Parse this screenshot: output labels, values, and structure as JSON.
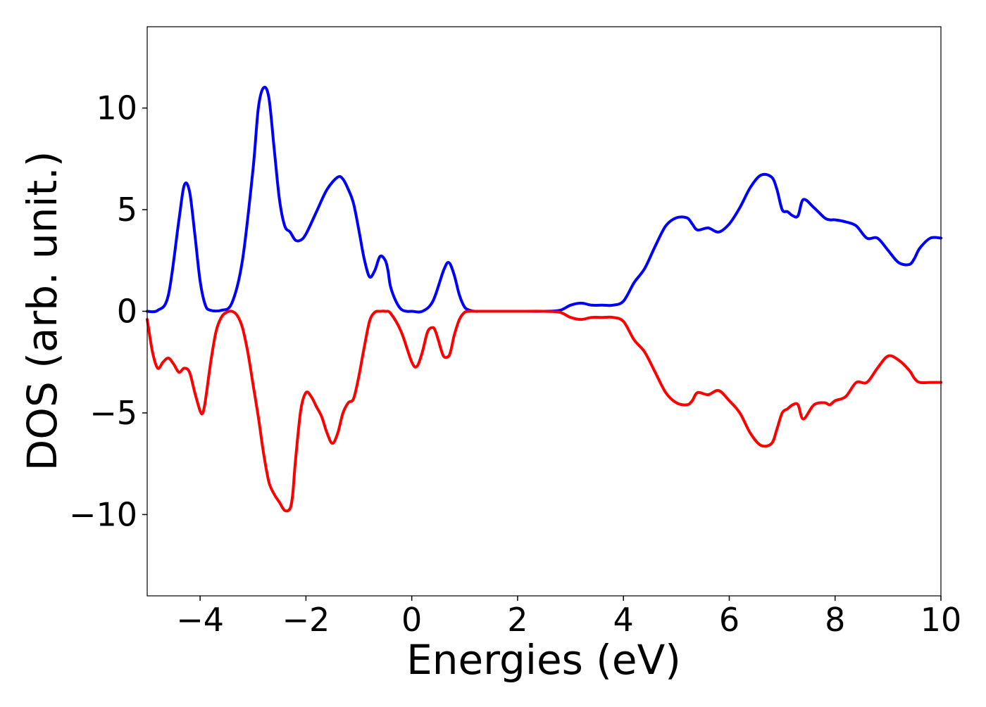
{
  "chart_data": {
    "type": "line",
    "title": "",
    "xlabel": "Energies (eV)",
    "ylabel": "DOS (arb. unit.)",
    "xlim": [
      -5,
      10
    ],
    "ylim": [
      -14,
      14
    ],
    "xticks": [
      -4,
      -2,
      0,
      2,
      4,
      6,
      8,
      10
    ],
    "xtick_labels": [
      "−4",
      "−2",
      "0",
      "2",
      "4",
      "6",
      "8",
      "10"
    ],
    "yticks": [
      -10,
      -5,
      0,
      5,
      10
    ],
    "ytick_labels": [
      "−10",
      "−5",
      "0",
      "5",
      "10"
    ],
    "grid": false,
    "series": [
      {
        "color": "#0000ff",
        "x": [
          -5.0,
          -4.8,
          -4.6,
          -4.4,
          -4.3,
          -4.2,
          -4.1,
          -4.0,
          -3.9,
          -3.8,
          -3.6,
          -3.4,
          -3.2,
          -3.0,
          -2.9,
          -2.8,
          -2.7,
          -2.6,
          -2.5,
          -2.4,
          -2.3,
          -2.2,
          -2.1,
          -2.0,
          -1.8,
          -1.6,
          -1.4,
          -1.3,
          -1.2,
          -1.1,
          -1.0,
          -0.9,
          -0.8,
          -0.7,
          -0.6,
          -0.5,
          -0.45,
          -0.4,
          -0.3,
          -0.2,
          -0.1,
          0.0,
          0.2,
          0.4,
          0.6,
          0.7,
          0.8,
          0.9,
          1.0,
          1.1,
          1.2,
          1.3,
          1.4,
          1.6,
          2.0,
          2.5,
          2.8,
          3.0,
          3.2,
          3.4,
          3.6,
          3.8,
          4.0,
          4.2,
          4.4,
          4.6,
          4.8,
          5.0,
          5.2,
          5.3,
          5.4,
          5.6,
          5.8,
          6.0,
          6.2,
          6.4,
          6.6,
          6.8,
          6.9,
          7.0,
          7.1,
          7.2,
          7.3,
          7.4,
          7.6,
          7.8,
          7.9,
          8.0,
          8.2,
          8.4,
          8.6,
          8.8,
          9.0,
          9.2,
          9.4,
          9.5,
          9.6,
          9.8,
          10.0
        ],
        "values": [
          0.0,
          0.05,
          0.8,
          4.5,
          6.2,
          5.9,
          3.8,
          1.5,
          0.3,
          0.05,
          0.05,
          0.4,
          2.5,
          7.0,
          10.0,
          11.0,
          10.5,
          8.0,
          5.5,
          4.2,
          3.9,
          3.5,
          3.5,
          3.8,
          4.9,
          6.0,
          6.6,
          6.5,
          6.0,
          5.3,
          4.0,
          2.6,
          1.7,
          2.0,
          2.7,
          2.5,
          2.0,
          1.2,
          0.5,
          0.1,
          0.0,
          0.0,
          0.0,
          0.5,
          2.0,
          2.4,
          1.8,
          0.8,
          0.2,
          0.05,
          0.0,
          0.0,
          0.0,
          0.0,
          0.0,
          0.0,
          0.05,
          0.3,
          0.4,
          0.3,
          0.3,
          0.3,
          0.5,
          1.4,
          2.1,
          3.2,
          4.2,
          4.6,
          4.6,
          4.3,
          4.0,
          4.1,
          3.9,
          4.3,
          5.1,
          6.1,
          6.7,
          6.6,
          6.0,
          5.0,
          4.9,
          4.7,
          4.7,
          5.5,
          5.1,
          4.6,
          4.5,
          4.5,
          4.4,
          4.2,
          3.6,
          3.6,
          3.0,
          2.4,
          2.3,
          2.6,
          3.1,
          3.6,
          3.6
        ]
      },
      {
        "color": "#ff0000",
        "x": [
          -5.0,
          -4.9,
          -4.8,
          -4.7,
          -4.6,
          -4.5,
          -4.4,
          -4.3,
          -4.2,
          -4.1,
          -4.0,
          -3.95,
          -3.9,
          -3.8,
          -3.7,
          -3.6,
          -3.5,
          -3.4,
          -3.3,
          -3.2,
          -3.1,
          -3.0,
          -2.9,
          -2.8,
          -2.7,
          -2.6,
          -2.5,
          -2.4,
          -2.3,
          -2.25,
          -2.2,
          -2.1,
          -2.0,
          -1.9,
          -1.8,
          -1.7,
          -1.6,
          -1.5,
          -1.4,
          -1.3,
          -1.2,
          -1.1,
          -1.0,
          -0.9,
          -0.8,
          -0.7,
          -0.6,
          -0.5,
          -0.4,
          -0.2,
          0.0,
          0.1,
          0.2,
          0.3,
          0.4,
          0.45,
          0.5,
          0.6,
          0.7,
          0.75,
          0.8,
          0.9,
          1.0,
          1.1,
          1.2,
          1.3,
          1.4,
          1.5,
          1.6,
          2.0,
          2.5,
          2.8,
          3.0,
          3.2,
          3.4,
          3.6,
          3.8,
          4.0,
          4.2,
          4.4,
          4.6,
          4.8,
          5.0,
          5.2,
          5.3,
          5.4,
          5.6,
          5.8,
          6.0,
          6.2,
          6.4,
          6.6,
          6.8,
          6.9,
          7.0,
          7.1,
          7.2,
          7.3,
          7.4,
          7.6,
          7.8,
          7.9,
          8.0,
          8.2,
          8.4,
          8.6,
          8.8,
          9.0,
          9.2,
          9.4,
          9.5,
          9.6,
          9.8,
          10.0
        ],
        "values": [
          -0.4,
          -2.0,
          -2.8,
          -2.5,
          -2.3,
          -2.6,
          -3.0,
          -2.8,
          -3.0,
          -4.0,
          -4.9,
          -5.0,
          -4.4,
          -2.5,
          -1.0,
          -0.3,
          -0.05,
          0.0,
          -0.2,
          -0.8,
          -2.0,
          -3.6,
          -5.2,
          -7.0,
          -8.4,
          -9.0,
          -9.4,
          -9.8,
          -9.7,
          -9.0,
          -7.4,
          -4.9,
          -4.0,
          -4.2,
          -4.7,
          -5.2,
          -6.0,
          -6.5,
          -6.0,
          -5.0,
          -4.5,
          -4.3,
          -3.2,
          -1.8,
          -0.5,
          -0.05,
          0.0,
          0.0,
          -0.1,
          -1.0,
          -2.5,
          -2.7,
          -2.0,
          -1.0,
          -0.8,
          -1.0,
          -1.4,
          -2.2,
          -2.2,
          -1.8,
          -1.2,
          -0.4,
          -0.05,
          0.0,
          0.0,
          0.0,
          0.0,
          0.0,
          0.0,
          0.0,
          0.0,
          -0.05,
          -0.3,
          -0.4,
          -0.3,
          -0.3,
          -0.3,
          -0.5,
          -1.4,
          -2.0,
          -3.0,
          -4.0,
          -4.5,
          -4.6,
          -4.4,
          -4.0,
          -4.1,
          -3.9,
          -4.4,
          -5.0,
          -6.0,
          -6.6,
          -6.5,
          -5.8,
          -5.0,
          -4.8,
          -4.6,
          -4.6,
          -5.3,
          -4.6,
          -4.5,
          -4.6,
          -4.4,
          -4.2,
          -3.5,
          -3.5,
          -2.8,
          -2.2,
          -2.4,
          -2.9,
          -3.3,
          -3.5,
          -3.5,
          -3.5
        ]
      }
    ]
  }
}
